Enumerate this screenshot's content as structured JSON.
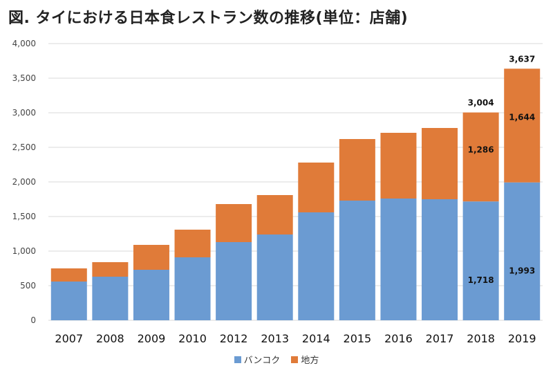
{
  "title": "図. タイにおける日本食レストラン数の推移(単位：店舗)",
  "chart_data": {
    "type": "bar",
    "stacked": true,
    "title": "図. タイにおける日本食レストラン数の推移(単位：店舗)",
    "xlabel": "",
    "ylabel": "",
    "ylim": [
      0,
      4000
    ],
    "yticks": [
      "0",
      "500",
      "1,000",
      "1,500",
      "2,000",
      "2,500",
      "3,000",
      "3,500",
      "4,000"
    ],
    "grid": true,
    "legend_position": "bottom",
    "categories": [
      "2007",
      "2008",
      "2009",
      "2010",
      "2012",
      "2013",
      "2014",
      "2015",
      "2016",
      "2017",
      "2018",
      "2019"
    ],
    "series": [
      {
        "name": "バンコク",
        "color": "#6b9bd2",
        "values": [
          560,
          630,
          730,
          910,
          1130,
          1240,
          1560,
          1730,
          1760,
          1750,
          1718,
          1993
        ]
      },
      {
        "name": "地方",
        "color": "#e07b39",
        "values": [
          190,
          210,
          360,
          400,
          550,
          570,
          720,
          890,
          950,
          1030,
          1286,
          1644
        ]
      }
    ],
    "annotations": {
      "2018": {
        "bottom": "1,718",
        "top": "1,286",
        "total": "3,004"
      },
      "2019": {
        "bottom": "1,993",
        "top": "1,644",
        "total": "3,637"
      }
    }
  }
}
